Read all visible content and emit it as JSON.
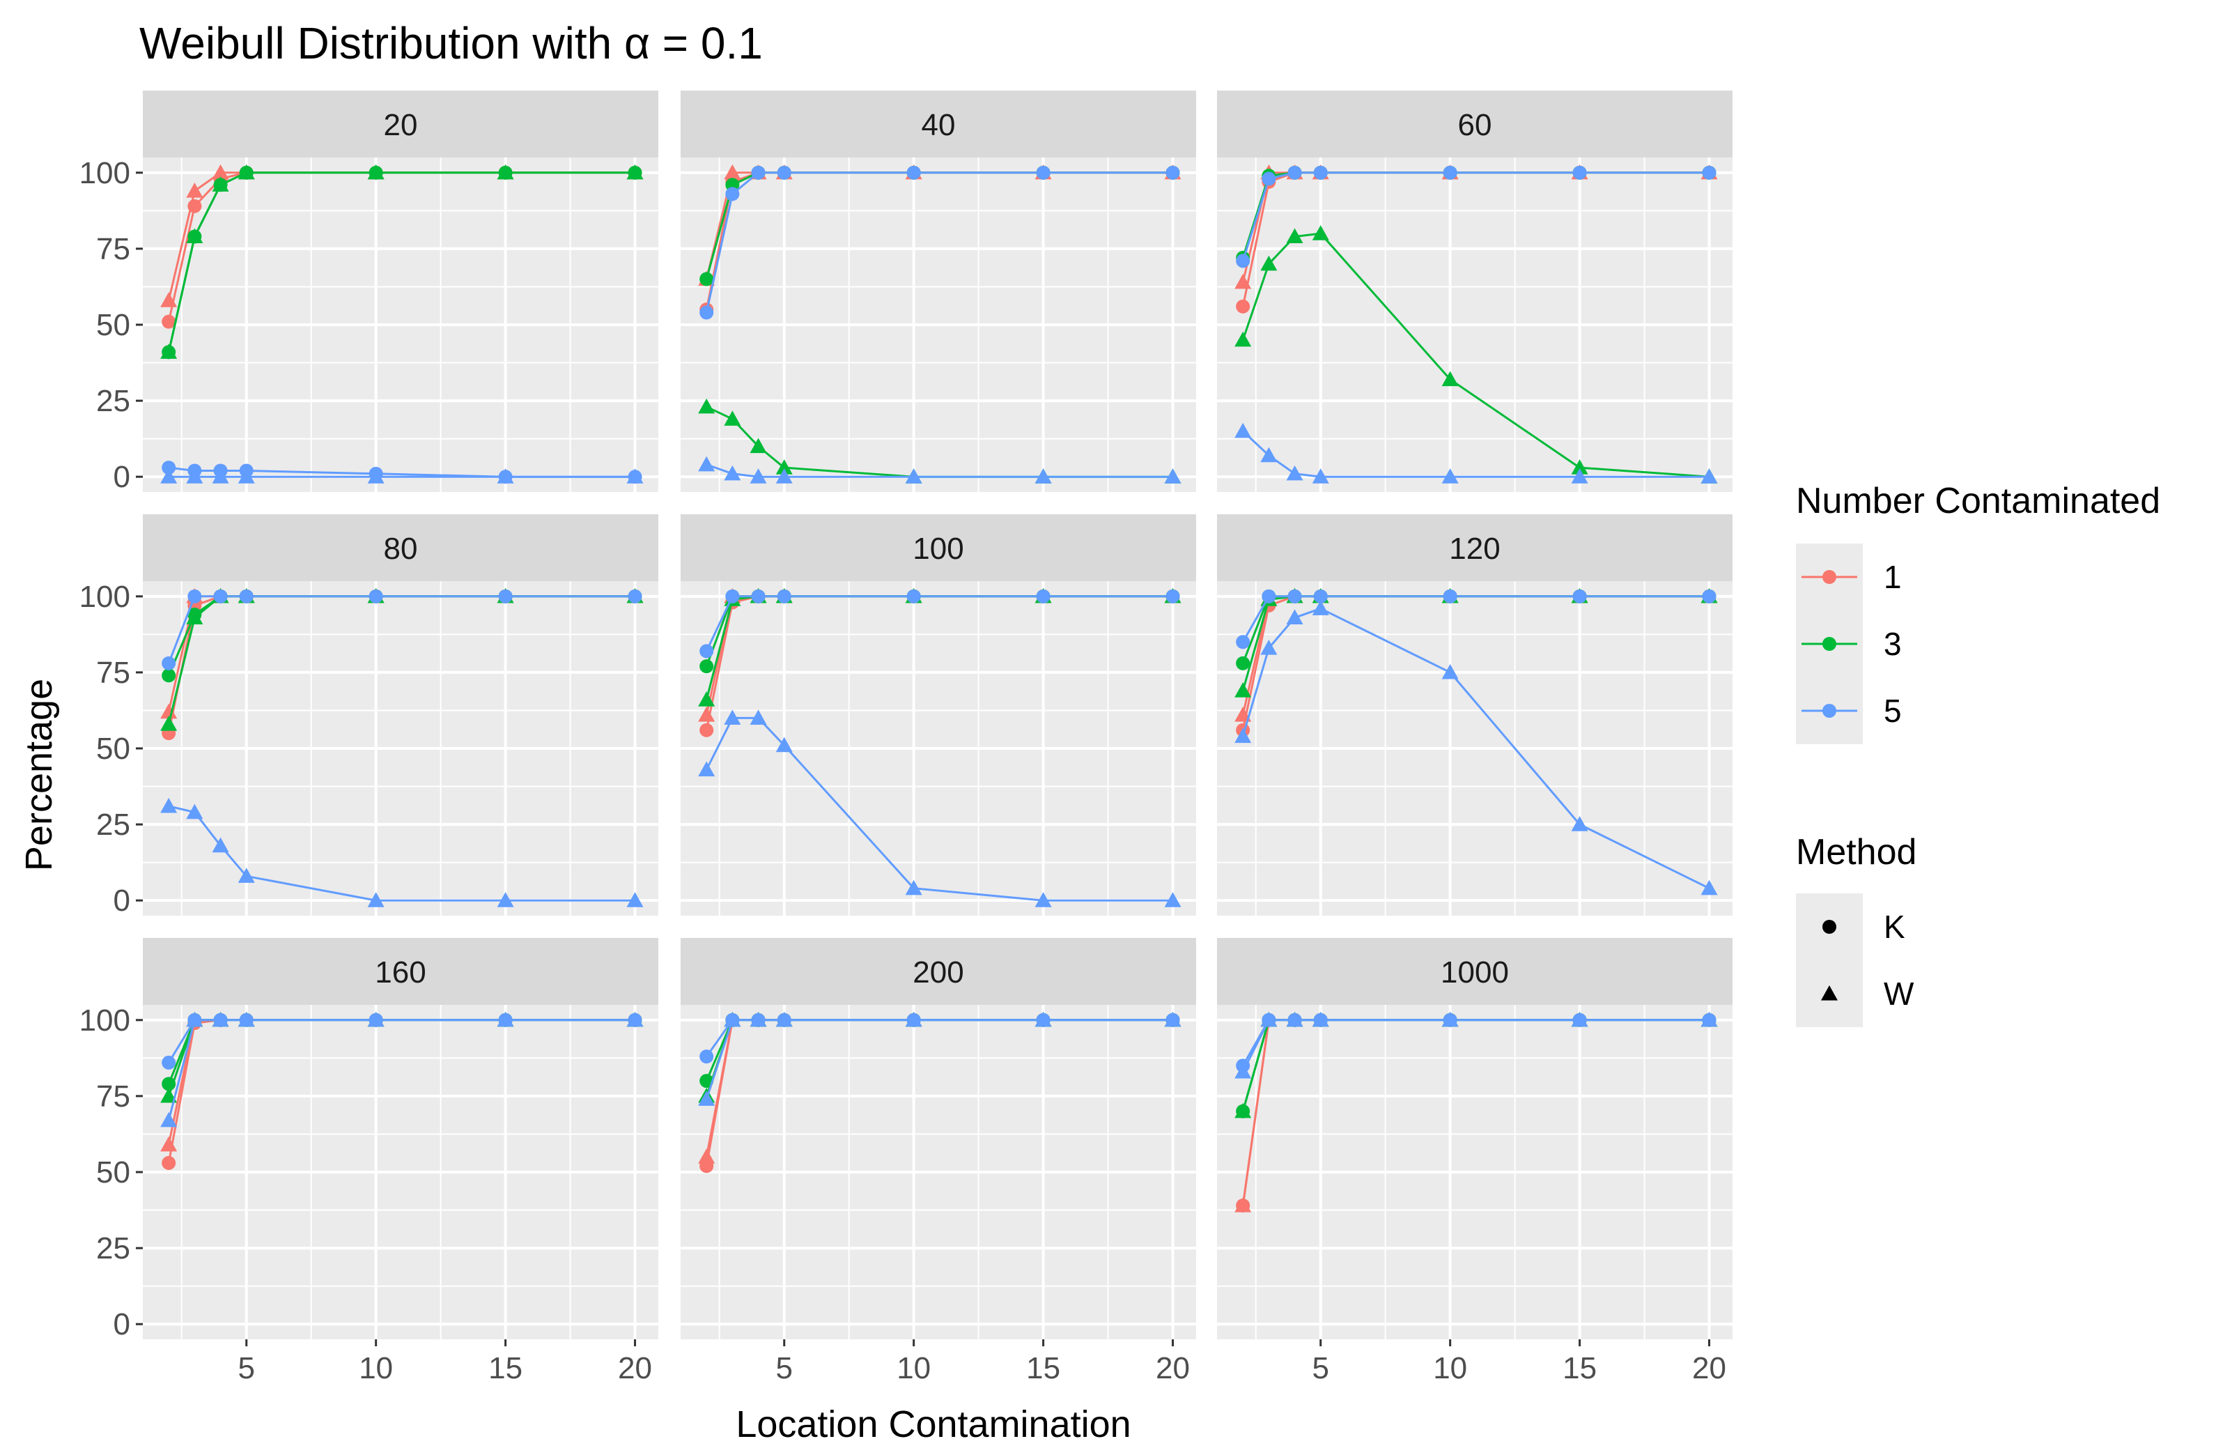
{
  "chart_data": {
    "type": "line",
    "title": "Weibull Distribution with α = 0.1",
    "xlabel": "Location Contamination",
    "ylabel": "Percentage",
    "xlim": [
      1.0,
      20.9
    ],
    "ylim": [
      -5,
      105
    ],
    "x_ticks": [
      5,
      10,
      15,
      20
    ],
    "y_ticks": [
      0,
      25,
      50,
      75,
      100
    ],
    "x": [
      2,
      3,
      4,
      5,
      10,
      15,
      20
    ],
    "colors": {
      "1": "#F8766D",
      "3": "#00BA38",
      "5": "#619CFF"
    },
    "legend": {
      "color_title": "Number Contaminated",
      "color_entries": [
        "1",
        "3",
        "5"
      ],
      "shape_title": "Method",
      "shape_entries": [
        {
          "label": "K",
          "shape": "circle"
        },
        {
          "label": "W",
          "shape": "triangle"
        }
      ]
    },
    "panels": [
      {
        "label": "20",
        "series": [
          {
            "n": "1",
            "method": "K",
            "values": [
              51,
              89,
              98,
              100,
              100,
              100,
              100
            ]
          },
          {
            "n": "1",
            "method": "W",
            "values": [
              58,
              94,
              100,
              100,
              100,
              100,
              100
            ]
          },
          {
            "n": "3",
            "method": "K",
            "values": [
              41,
              79,
              96,
              100,
              100,
              100,
              100
            ]
          },
          {
            "n": "3",
            "method": "W",
            "values": [
              41,
              79,
              96,
              100,
              100,
              100,
              100
            ]
          },
          {
            "n": "5",
            "method": "K",
            "values": [
              3,
              2,
              2,
              2,
              1,
              0,
              0
            ]
          },
          {
            "n": "5",
            "method": "W",
            "values": [
              0,
              0,
              0,
              0,
              0,
              0,
              0
            ]
          }
        ]
      },
      {
        "label": "40",
        "series": [
          {
            "n": "1",
            "method": "K",
            "values": [
              55,
              97,
              100,
              100,
              100,
              100,
              100
            ]
          },
          {
            "n": "1",
            "method": "W",
            "values": [
              65,
              100,
              100,
              100,
              100,
              100,
              100
            ]
          },
          {
            "n": "3",
            "method": "K",
            "values": [
              65,
              96,
              100,
              100,
              100,
              100,
              100
            ]
          },
          {
            "n": "3",
            "method": "W",
            "values": [
              23,
              19,
              10,
              3,
              0,
              0,
              0
            ]
          },
          {
            "n": "5",
            "method": "K",
            "values": [
              54,
              93,
              100,
              100,
              100,
              100,
              100
            ]
          },
          {
            "n": "5",
            "method": "W",
            "values": [
              4,
              1,
              0,
              0,
              0,
              0,
              0
            ]
          }
        ]
      },
      {
        "label": "60",
        "series": [
          {
            "n": "1",
            "method": "K",
            "values": [
              56,
              97,
              100,
              100,
              100,
              100,
              100
            ]
          },
          {
            "n": "1",
            "method": "W",
            "values": [
              64,
              100,
              100,
              100,
              100,
              100,
              100
            ]
          },
          {
            "n": "3",
            "method": "K",
            "values": [
              72,
              99,
              100,
              100,
              100,
              100,
              100
            ]
          },
          {
            "n": "3",
            "method": "W",
            "values": [
              45,
              70,
              79,
              80,
              32,
              3,
              0
            ]
          },
          {
            "n": "5",
            "method": "K",
            "values": [
              71,
              98,
              100,
              100,
              100,
              100,
              100
            ]
          },
          {
            "n": "5",
            "method": "W",
            "values": [
              15,
              7,
              1,
              0,
              0,
              0,
              0
            ]
          }
        ]
      },
      {
        "label": "80",
        "series": [
          {
            "n": "1",
            "method": "K",
            "values": [
              55,
              97,
              100,
              100,
              100,
              100,
              100
            ]
          },
          {
            "n": "1",
            "method": "W",
            "values": [
              62,
              100,
              100,
              100,
              100,
              100,
              100
            ]
          },
          {
            "n": "3",
            "method": "K",
            "values": [
              74,
              94,
              100,
              100,
              100,
              100,
              100
            ]
          },
          {
            "n": "3",
            "method": "W",
            "values": [
              58,
              93,
              100,
              100,
              100,
              100,
              100
            ]
          },
          {
            "n": "5",
            "method": "K",
            "values": [
              78,
              100,
              100,
              100,
              100,
              100,
              100
            ]
          },
          {
            "n": "5",
            "method": "W",
            "values": [
              31,
              29,
              18,
              8,
              0,
              0,
              0
            ]
          }
        ]
      },
      {
        "label": "100",
        "series": [
          {
            "n": "1",
            "method": "K",
            "values": [
              56,
              98,
              100,
              100,
              100,
              100,
              100
            ]
          },
          {
            "n": "1",
            "method": "W",
            "values": [
              61,
              100,
              100,
              100,
              100,
              100,
              100
            ]
          },
          {
            "n": "3",
            "method": "K",
            "values": [
              77,
              100,
              100,
              100,
              100,
              100,
              100
            ]
          },
          {
            "n": "3",
            "method": "W",
            "values": [
              66,
              99,
              100,
              100,
              100,
              100,
              100
            ]
          },
          {
            "n": "5",
            "method": "K",
            "values": [
              82,
              100,
              100,
              100,
              100,
              100,
              100
            ]
          },
          {
            "n": "5",
            "method": "W",
            "values": [
              43,
              60,
              60,
              51,
              4,
              0,
              0
            ]
          }
        ]
      },
      {
        "label": "120",
        "series": [
          {
            "n": "1",
            "method": "K",
            "values": [
              56,
              97,
              100,
              100,
              100,
              100,
              100
            ]
          },
          {
            "n": "1",
            "method": "W",
            "values": [
              61,
              99,
              100,
              100,
              100,
              100,
              100
            ]
          },
          {
            "n": "3",
            "method": "K",
            "values": [
              78,
              100,
              100,
              100,
              100,
              100,
              100
            ]
          },
          {
            "n": "3",
            "method": "W",
            "values": [
              69,
              99,
              100,
              100,
              100,
              100,
              100
            ]
          },
          {
            "n": "5",
            "method": "K",
            "values": [
              85,
              100,
              100,
              100,
              100,
              100,
              100
            ]
          },
          {
            "n": "5",
            "method": "W",
            "values": [
              54,
              83,
              93,
              96,
              75,
              25,
              4
            ]
          }
        ]
      },
      {
        "label": "160",
        "series": [
          {
            "n": "1",
            "method": "K",
            "values": [
              53,
              99,
              100,
              100,
              100,
              100,
              100
            ]
          },
          {
            "n": "1",
            "method": "W",
            "values": [
              59,
              100,
              100,
              100,
              100,
              100,
              100
            ]
          },
          {
            "n": "3",
            "method": "K",
            "values": [
              79,
              100,
              100,
              100,
              100,
              100,
              100
            ]
          },
          {
            "n": "3",
            "method": "W",
            "values": [
              75,
              100,
              100,
              100,
              100,
              100,
              100
            ]
          },
          {
            "n": "5",
            "method": "K",
            "values": [
              86,
              100,
              100,
              100,
              100,
              100,
              100
            ]
          },
          {
            "n": "5",
            "method": "W",
            "values": [
              67,
              100,
              100,
              100,
              100,
              100,
              100
            ]
          }
        ]
      },
      {
        "label": "200",
        "series": [
          {
            "n": "1",
            "method": "K",
            "values": [
              52,
              100,
              100,
              100,
              100,
              100,
              100
            ]
          },
          {
            "n": "1",
            "method": "W",
            "values": [
              55,
              100,
              100,
              100,
              100,
              100,
              100
            ]
          },
          {
            "n": "3",
            "method": "K",
            "values": [
              80,
              100,
              100,
              100,
              100,
              100,
              100
            ]
          },
          {
            "n": "3",
            "method": "W",
            "values": [
              75,
              100,
              100,
              100,
              100,
              100,
              100
            ]
          },
          {
            "n": "5",
            "method": "K",
            "values": [
              88,
              100,
              100,
              100,
              100,
              100,
              100
            ]
          },
          {
            "n": "5",
            "method": "W",
            "values": [
              74,
              100,
              100,
              100,
              100,
              100,
              100
            ]
          }
        ]
      },
      {
        "label": "1000",
        "series": [
          {
            "n": "1",
            "method": "K",
            "values": [
              39,
              100,
              100,
              100,
              100,
              100,
              100
            ]
          },
          {
            "n": "1",
            "method": "W",
            "values": [
              39,
              100,
              100,
              100,
              100,
              100,
              100
            ]
          },
          {
            "n": "3",
            "method": "K",
            "values": [
              70,
              100,
              100,
              100,
              100,
              100,
              100
            ]
          },
          {
            "n": "3",
            "method": "W",
            "values": [
              70,
              100,
              100,
              100,
              100,
              100,
              100
            ]
          },
          {
            "n": "5",
            "method": "K",
            "values": [
              85,
              100,
              100,
              100,
              100,
              100,
              100
            ]
          },
          {
            "n": "5",
            "method": "W",
            "values": [
              83,
              100,
              100,
              100,
              100,
              100,
              100
            ]
          }
        ]
      }
    ]
  }
}
